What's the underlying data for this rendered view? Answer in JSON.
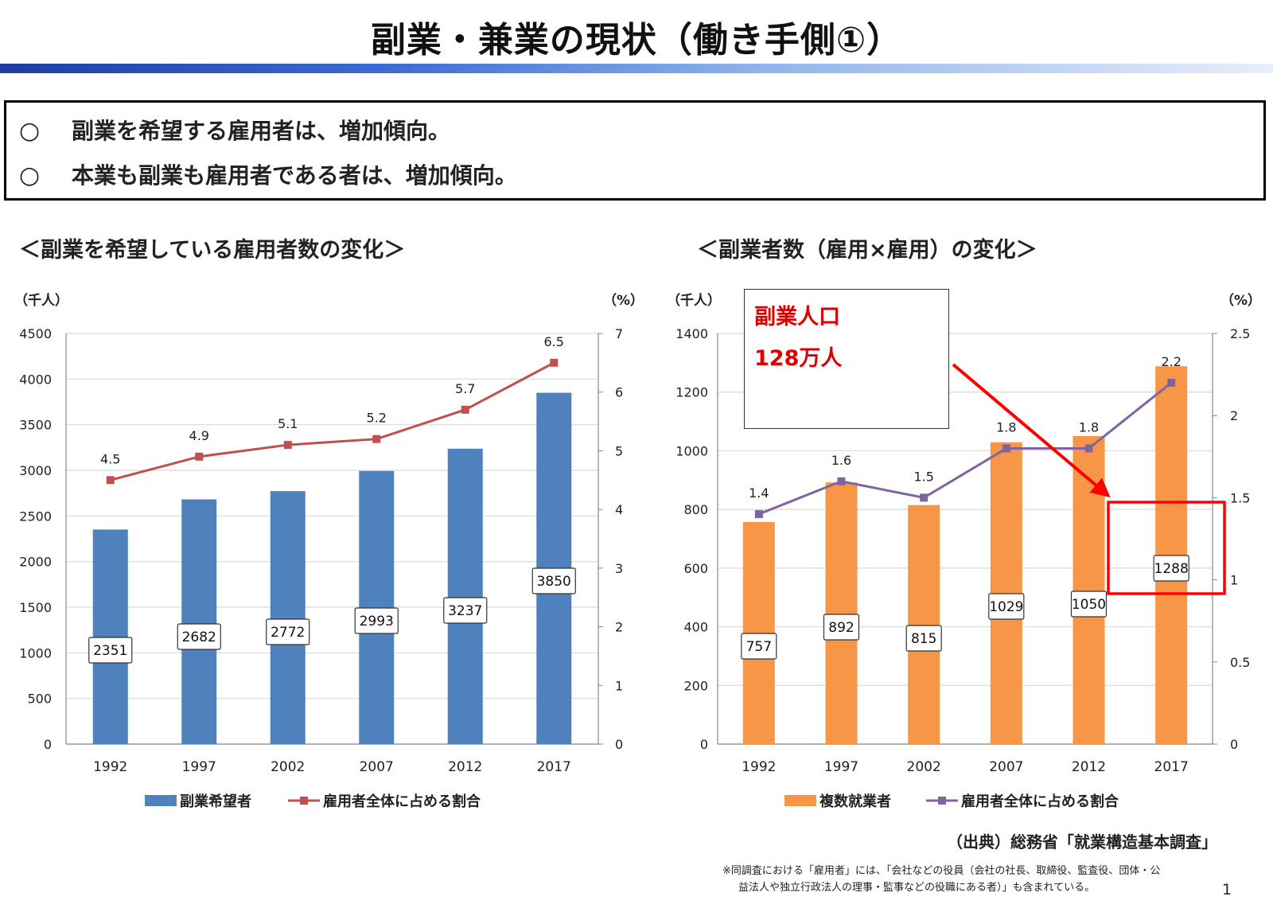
{
  "slide": {
    "title": "副業・兼業の現状（働き手側①）",
    "summary_items": [
      {
        "mark": "○",
        "text": "副業を希望する雇用者は、増加傾向。"
      },
      {
        "mark": "○",
        "text": "本業も副業も雇用者である者は、増加傾向。"
      }
    ],
    "source": "（出典）総務省「就業構造基本調査」",
    "note_lines": [
      "※同調査における「雇用者」には、「会社などの役員（会社の社長、取締役、監査役、団体・公",
      "益法人や独立行政法人の理事・監事などの役職にある者）」も含まれている。"
    ],
    "page_number": "1"
  },
  "colors": {
    "left_bar": "#4f81bd",
    "left_line": "#c0504d",
    "right_bar": "#f79646",
    "right_line": "#8064a2",
    "annotation": "#ff0000",
    "grid": "#d9d9d9"
  },
  "callout": {
    "line1": "副業人口",
    "line2": "128万人",
    "highlights_category": "2017"
  },
  "chart_data": [
    {
      "type": "bar",
      "title": "＜副業を希望している雇用者数の変化＞",
      "categories": [
        "1992",
        "1997",
        "2002",
        "2007",
        "2012",
        "2017"
      ],
      "y_unit": "（千人）",
      "y2_unit": "（%）",
      "ylim": [
        0,
        4500
      ],
      "yticks": [
        "0",
        "500",
        "1000",
        "1500",
        "2000",
        "2500",
        "3000",
        "3500",
        "4000",
        "4500"
      ],
      "y2lim": [
        0,
        7
      ],
      "y2ticks": [
        "0",
        "1",
        "2",
        "3",
        "4",
        "5",
        "6",
        "7"
      ],
      "grid": true,
      "legend_position": "bottom",
      "series": [
        {
          "name": "副業希望者",
          "kind": "bar",
          "axis": "left",
          "values": [
            2351,
            2682,
            2772,
            2993,
            3237,
            3850
          ],
          "labels": [
            "2351",
            "2682",
            "2772",
            "2993",
            "3237",
            "3850"
          ]
        },
        {
          "name": "雇用者全体に占める割合",
          "kind": "line",
          "axis": "right",
          "values": [
            4.5,
            4.9,
            5.1,
            5.2,
            5.7,
            6.5
          ],
          "labels": [
            "4.5",
            "4.9",
            "5.1",
            "5.2",
            "5.7",
            "6.5"
          ]
        }
      ]
    },
    {
      "type": "bar",
      "title": "＜副業者数（雇用×雇用）の変化＞",
      "categories": [
        "1992",
        "1997",
        "2002",
        "2007",
        "2012",
        "2017"
      ],
      "y_unit": "（千人）",
      "y2_unit": "（%）",
      "ylim": [
        0,
        1400
      ],
      "yticks": [
        "0",
        "200",
        "400",
        "600",
        "800",
        "1000",
        "1200",
        "1400"
      ],
      "y2lim": [
        0,
        2.5
      ],
      "y2ticks": [
        "0",
        "0.5",
        "1",
        "1.5",
        "2",
        "2.5"
      ],
      "grid": true,
      "legend_position": "bottom",
      "series": [
        {
          "name": "複数就業者",
          "kind": "bar",
          "axis": "left",
          "values": [
            757,
            892,
            815,
            1029,
            1050,
            1288
          ],
          "labels": [
            "757",
            "892",
            "815",
            "1029",
            "1050",
            "1288"
          ]
        },
        {
          "name": "雇用者全体に占める割合",
          "kind": "line",
          "axis": "right",
          "values": [
            1.4,
            1.6,
            1.5,
            1.8,
            1.8,
            2.2
          ],
          "labels": [
            "1.4",
            "1.6",
            "1.5",
            "1.8",
            "1.8",
            "2.2"
          ]
        }
      ]
    }
  ]
}
